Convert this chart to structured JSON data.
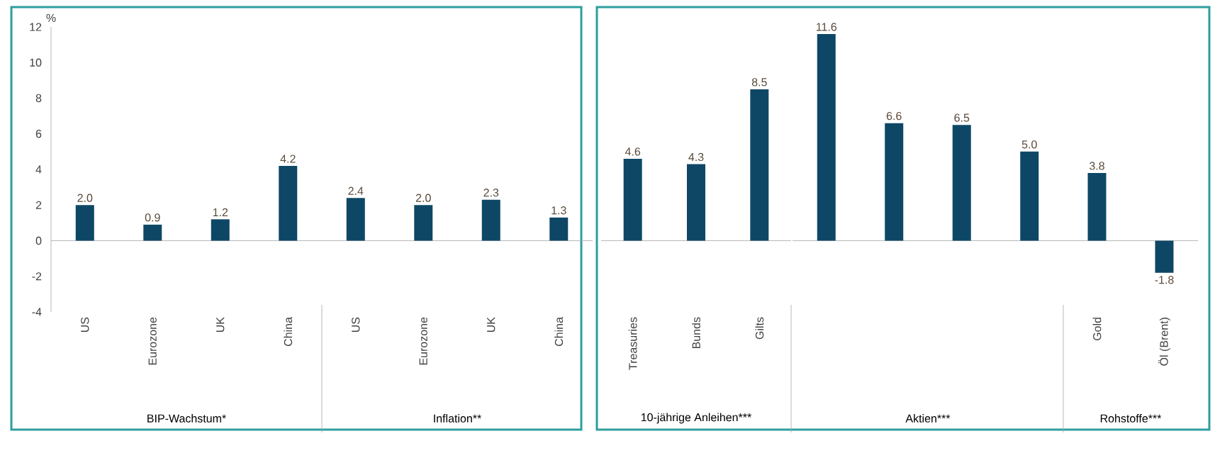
{
  "chart_data": [
    {
      "type": "bar",
      "ylabel": "%",
      "xlabel": "BIP-Wachstum*",
      "categories": [
        "US",
        "Eurozone",
        "UK",
        "China"
      ],
      "values": [
        2.0,
        0.9,
        1.2,
        4.2
      ],
      "value_labels": [
        "2.0",
        "0.9",
        "1.2",
        "4.2"
      ],
      "color": "#0e4766",
      "ylim": [
        -4,
        12
      ],
      "yticks": [
        -4,
        -2,
        0,
        2,
        4,
        6,
        8,
        10,
        12
      ]
    },
    {
      "type": "bar",
      "xlabel": "Inflation**",
      "categories": [
        "US",
        "Eurozone",
        "UK",
        "China"
      ],
      "values": [
        2.4,
        2.0,
        2.3,
        1.3
      ],
      "value_labels": [
        "2.4",
        "2.0",
        "2.3",
        "1.3"
      ],
      "color": "#0e4766",
      "tick_labels": "x"
    },
    {
      "type": "bar",
      "xlabel": "10-jährige Anleihen***",
      "categories": [
        "Treasuries",
        "Bunds",
        "Gilts"
      ],
      "values": [
        4.6,
        4.3,
        8.5
      ],
      "value_labels": [
        "4.6",
        "4.3",
        "8.5"
      ],
      "color": "#0e4766",
      "tick_labels": "x"
    },
    {
      "type": "bar",
      "xlabel": "Aktien***",
      "categories": [
        null,
        null,
        null,
        null
      ],
      "values": [
        11.6,
        6.6,
        6.5,
        5.0
      ],
      "value_labels": [
        "11.6",
        "6.6",
        "6.5",
        "5.0"
      ],
      "color": "#0e4766",
      "tick_labels": "x"
    },
    {
      "type": "bar",
      "xlabel": "Rohstoffe***",
      "categories": [
        "Gold",
        "Öl (Brent)"
      ],
      "values": [
        3.8,
        -1.8
      ],
      "value_labels": [
        "3.8",
        "-1.8"
      ],
      "color": "#0e4766",
      "tick_labels": "x"
    }
  ]
}
